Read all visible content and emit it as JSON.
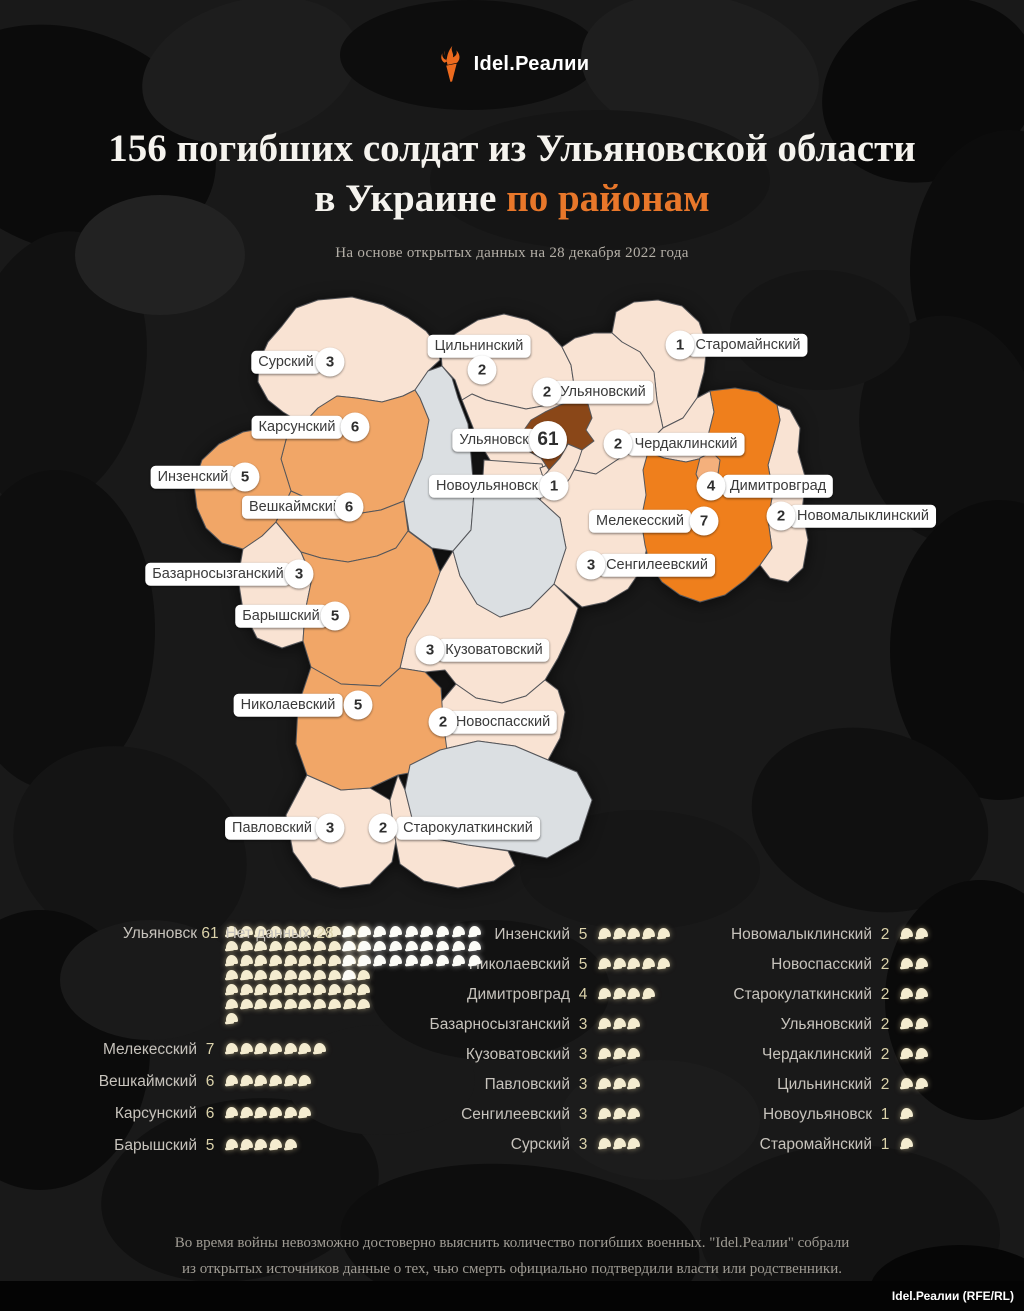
{
  "header": {
    "logo_text": "Idel.Реалии"
  },
  "title": {
    "line1": "156 погибших солдат из Ульяновской области",
    "line2_prefix": "в Украине ",
    "line2_accent": "по районам"
  },
  "subtitle": "На основе открытых данных на 28 декабря 2022 года",
  "theme": {
    "accent_orange": "#e8772a",
    "torch_orange": "#ec6a1e",
    "helmet_cream": "#f4ecd0",
    "helmet_white": "#fcfcf7"
  },
  "map": {
    "palette": {
      "cream": "#f9e3d3",
      "sandy": "#f1a667",
      "sandy_light": "#f4b07c",
      "orange": "#ef7f1c",
      "brown": "#8a4718",
      "gray": "#dbdfe2"
    },
    "labels": [
      {
        "id": "surskiy",
        "name": "Сурский",
        "count": 3,
        "chip": [
          286,
          362
        ],
        "circle": [
          330,
          362
        ]
      },
      {
        "id": "tsilninskiy",
        "name": "Цильнинский",
        "count": 2,
        "chip": [
          479,
          346
        ],
        "circle": [
          482,
          370
        ]
      },
      {
        "id": "staromaynskiy",
        "name": "Старомайнский",
        "count": 1,
        "chip": [
          748,
          345
        ],
        "circle": [
          680,
          345
        ]
      },
      {
        "id": "ulyanovskiy",
        "name": "Ульяновский",
        "count": 2,
        "chip": [
          603,
          392
        ],
        "circle": [
          547,
          392
        ]
      },
      {
        "id": "ulyanovsk",
        "name": "Ульяновск",
        "count": 61,
        "chip": [
          494,
          440
        ],
        "circle": [
          548,
          440
        ],
        "big": true
      },
      {
        "id": "cherdaklinskiy",
        "name": "Чердаклинский",
        "count": 2,
        "chip": [
          686,
          444
        ],
        "circle": [
          618,
          444
        ]
      },
      {
        "id": "novoulyanovsk",
        "name": "Новоульяновск",
        "count": 1,
        "chip": [
          487,
          486
        ],
        "circle": [
          554,
          486
        ]
      },
      {
        "id": "dimitrovgrad",
        "name": "Димитровград",
        "count": 4,
        "chip": [
          778,
          486
        ],
        "circle": [
          711,
          486
        ]
      },
      {
        "id": "melekesskiy",
        "name": "Мелекесский",
        "count": 7,
        "chip": [
          640,
          521
        ],
        "circle": [
          704,
          521
        ]
      },
      {
        "id": "novomalyklinskiy",
        "name": "Новомалыклинский",
        "count": 2,
        "chip": [
          863,
          516
        ],
        "circle": [
          781,
          516
        ]
      },
      {
        "id": "sengileevskiy",
        "name": "Сенгилеевский",
        "count": 3,
        "chip": [
          657,
          565
        ],
        "circle": [
          591,
          565
        ]
      },
      {
        "id": "inzenskiy",
        "name": "Инзенский",
        "count": 5,
        "chip": [
          193,
          477
        ],
        "circle": [
          245,
          477
        ]
      },
      {
        "id": "karsunskiy",
        "name": "Карсунский",
        "count": 6,
        "chip": [
          297,
          427
        ],
        "circle": [
          355,
          427
        ]
      },
      {
        "id": "veshkaymskiy",
        "name": "Вешкаймский",
        "count": 6,
        "chip": [
          295,
          507
        ],
        "circle": [
          349,
          507
        ]
      },
      {
        "id": "bazarnosyzganskiy",
        "name": "Базарносызганский",
        "count": 3,
        "chip": [
          218,
          574
        ],
        "circle": [
          299,
          574
        ]
      },
      {
        "id": "baryshskiy",
        "name": "Барышский",
        "count": 5,
        "chip": [
          281,
          616
        ],
        "circle": [
          335,
          616
        ]
      },
      {
        "id": "kuzovatovskiy",
        "name": "Кузоватовский",
        "count": 3,
        "chip": [
          494,
          650
        ],
        "circle": [
          430,
          650
        ]
      },
      {
        "id": "nikolaevskiy",
        "name": "Николаевский",
        "count": 5,
        "chip": [
          288,
          705
        ],
        "circle": [
          358,
          705
        ]
      },
      {
        "id": "novospasskiy",
        "name": "Новоспасский",
        "count": 2,
        "chip": [
          503,
          722
        ],
        "circle": [
          443,
          722
        ]
      },
      {
        "id": "pavlovskiy",
        "name": "Павловский",
        "count": 3,
        "chip": [
          272,
          828
        ],
        "circle": [
          330,
          828
        ]
      },
      {
        "id": "starokulatkinskiy",
        "name": "Старокулаткинский",
        "count": 2,
        "chip": [
          468,
          828
        ],
        "circle": [
          383,
          828
        ]
      }
    ]
  },
  "stats": {
    "columns": [
      [
        {
          "name": "Ульяновск",
          "count": 61
        },
        {
          "name": "Мелекесский",
          "count": 7
        },
        {
          "name": "Вешкаймский",
          "count": 6
        },
        {
          "name": "Карсунский",
          "count": 6
        },
        {
          "name": "Барышский",
          "count": 5
        }
      ],
      [
        {
          "name": "Инзенский",
          "count": 5
        },
        {
          "name": "Николаевский",
          "count": 5
        },
        {
          "name": "Димитровград",
          "count": 4
        },
        {
          "name": "Базарносызганский",
          "count": 3
        },
        {
          "name": "Кузоватовский",
          "count": 3
        },
        {
          "name": "Павловский",
          "count": 3
        },
        {
          "name": "Сенгилеевский",
          "count": 3
        },
        {
          "name": "Сурский",
          "count": 3
        }
      ],
      [
        {
          "name": "Новомалыклинский",
          "count": 2
        },
        {
          "name": "Новоспасский",
          "count": 2
        },
        {
          "name": "Старокулаткинский",
          "count": 2
        },
        {
          "name": "Ульяновский",
          "count": 2
        },
        {
          "name": "Чердаклинский",
          "count": 2
        },
        {
          "name": "Цильнинский",
          "count": 2
        },
        {
          "name": "Новоульяновск",
          "count": 1
        },
        {
          "name": "Старомайнский",
          "count": 1
        }
      ]
    ],
    "no_data": {
      "label": "Нет данных",
      "count": 28
    }
  },
  "footer": {
    "line1": "Во время войны невозможно достоверно выяснить количество погибших военных. \"Idel.Реалии\" собрали",
    "line2": "из открытых источников данные о тех, чью смерть официально подтвердили власти или родственники.",
    "credit": "Idel.Реалии (RFE/RL)"
  },
  "chart_data": {
    "type": "heatmap",
    "subtype": "choropleth-map-with-pictogram-counts",
    "title": "156 погибших солдат из Ульяновской области в Украине по районам",
    "subtitle": "На основе открытых данных на 28 декабря 2022 года",
    "total": 156,
    "categories": [
      "Ульяновск",
      "Мелекесский",
      "Вешкаймский",
      "Карсунский",
      "Барышский",
      "Инзенский",
      "Николаевский",
      "Димитровград",
      "Базарносызганский",
      "Кузоватовский",
      "Павловский",
      "Сенгилеевский",
      "Сурский",
      "Новомалыклинский",
      "Новоспасский",
      "Старокулаткинский",
      "Ульяновский",
      "Чердаклинский",
      "Цильнинский",
      "Новоульяновск",
      "Старомайнский"
    ],
    "values": [
      61,
      7,
      6,
      6,
      5,
      5,
      5,
      4,
      3,
      3,
      3,
      3,
      3,
      2,
      2,
      2,
      2,
      2,
      2,
      1,
      1
    ],
    "no_data": {
      "label": "Нет данных",
      "value": 28
    },
    "legend_position": "bottom",
    "unit": "helmet pictogram = 1 погибший"
  }
}
